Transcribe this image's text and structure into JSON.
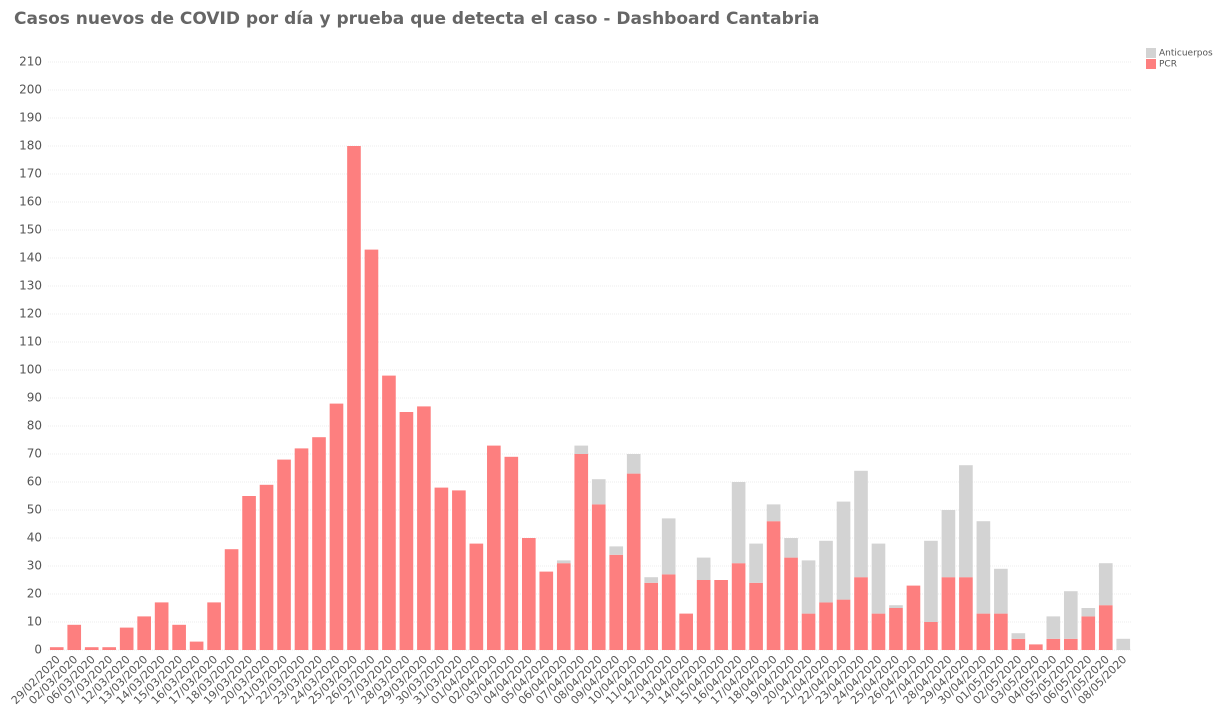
{
  "chart_data": {
    "type": "stacked_bar",
    "title": "Casos nuevos de COVID por día y prueba que detecta el caso - Dashboard Cantabria",
    "categories": [
      "29/02/2020",
      "02/03/2020",
      "06/03/2020",
      "07/03/2020",
      "12/03/2020",
      "13/03/2020",
      "14/03/2020",
      "15/03/2020",
      "16/03/2020",
      "17/03/2020",
      "18/03/2020",
      "19/03/2020",
      "20/03/2020",
      "21/03/2020",
      "22/03/2020",
      "23/03/2020",
      "24/03/2020",
      "25/03/2020",
      "26/03/2020",
      "27/03/2020",
      "28/03/2020",
      "29/03/2020",
      "30/03/2020",
      "31/03/2020",
      "01/04/2020",
      "02/04/2020",
      "03/04/2020",
      "04/04/2020",
      "05/04/2020",
      "06/04/2020",
      "07/04/2020",
      "08/04/2020",
      "09/04/2020",
      "10/04/2020",
      "11/04/2020",
      "12/04/2020",
      "13/04/2020",
      "14/04/2020",
      "15/04/2020",
      "16/04/2020",
      "17/04/2020",
      "18/04/2020",
      "19/04/2020",
      "20/04/2020",
      "21/04/2020",
      "22/04/2020",
      "23/04/2020",
      "24/04/2020",
      "25/04/2020",
      "26/04/2020",
      "27/04/2020",
      "28/04/2020",
      "29/04/2020",
      "30/04/2020",
      "01/05/2020",
      "02/05/2020",
      "03/05/2020",
      "04/05/2020",
      "05/05/2020",
      "06/05/2020",
      "07/05/2020",
      "08/05/2020"
    ],
    "series": [
      {
        "name": "PCR",
        "color": "#fd7f7f",
        "values": [
          1,
          9,
          1,
          1,
          8,
          12,
          17,
          9,
          3,
          17,
          36,
          55,
          59,
          68,
          72,
          76,
          88,
          180,
          143,
          98,
          85,
          87,
          58,
          57,
          38,
          73,
          69,
          40,
          28,
          31,
          70,
          52,
          34,
          63,
          24,
          27,
          13,
          25,
          25,
          31,
          24,
          46,
          33,
          13,
          17,
          18,
          26,
          13,
          15,
          23,
          10,
          26,
          26,
          13,
          13,
          4,
          2,
          4,
          4,
          12,
          16,
          0
        ]
      },
      {
        "name": "Anticuerpos",
        "color": "#d3d3d3",
        "values": [
          0,
          0,
          0,
          0,
          0,
          0,
          0,
          0,
          0,
          0,
          0,
          0,
          0,
          0,
          0,
          0,
          0,
          0,
          0,
          0,
          0,
          0,
          0,
          0,
          0,
          0,
          0,
          0,
          0,
          1,
          3,
          9,
          3,
          7,
          2,
          20,
          0,
          8,
          0,
          29,
          14,
          6,
          7,
          19,
          22,
          35,
          38,
          25,
          1,
          0,
          29,
          24,
          40,
          33,
          16,
          2,
          0,
          8,
          17,
          3,
          15,
          4
        ]
      }
    ],
    "ylim": [
      0,
      210
    ],
    "yticks": [
      0,
      10,
      20,
      30,
      40,
      50,
      60,
      70,
      80,
      90,
      100,
      110,
      120,
      130,
      140,
      150,
      160,
      170,
      180,
      190,
      200,
      210
    ],
    "grid": true,
    "legend": "top-right"
  }
}
